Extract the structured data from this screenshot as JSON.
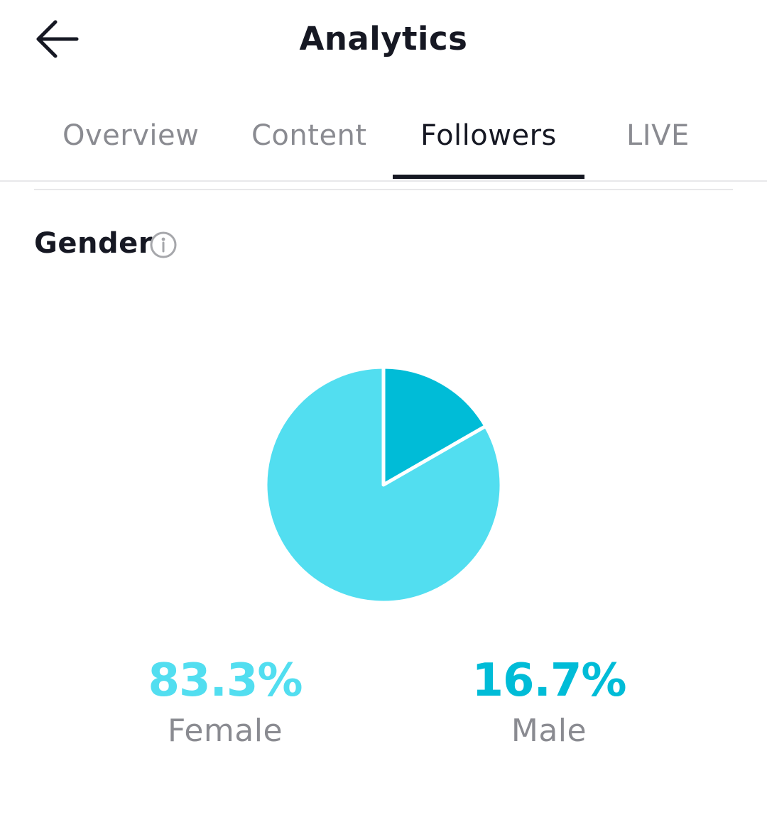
{
  "header": {
    "title": "Analytics",
    "back_icon": "arrow-left-icon"
  },
  "tabs": [
    {
      "label": "Overview",
      "active": false
    },
    {
      "label": "Content",
      "active": false
    },
    {
      "label": "Followers",
      "active": true
    },
    {
      "label": "LIVE",
      "active": false
    }
  ],
  "gender": {
    "title": "Gender",
    "info_icon": "info-icon"
  },
  "colors": {
    "female": "#52def0",
    "male": "#00bcd7",
    "text_dark": "#161823",
    "text_muted": "#8a8b91"
  },
  "chart_data": {
    "type": "pie",
    "categories": [
      "Female",
      "Male"
    ],
    "values": [
      83.3,
      16.7
    ],
    "value_labels": [
      "83.3%",
      "16.7%"
    ]
  }
}
